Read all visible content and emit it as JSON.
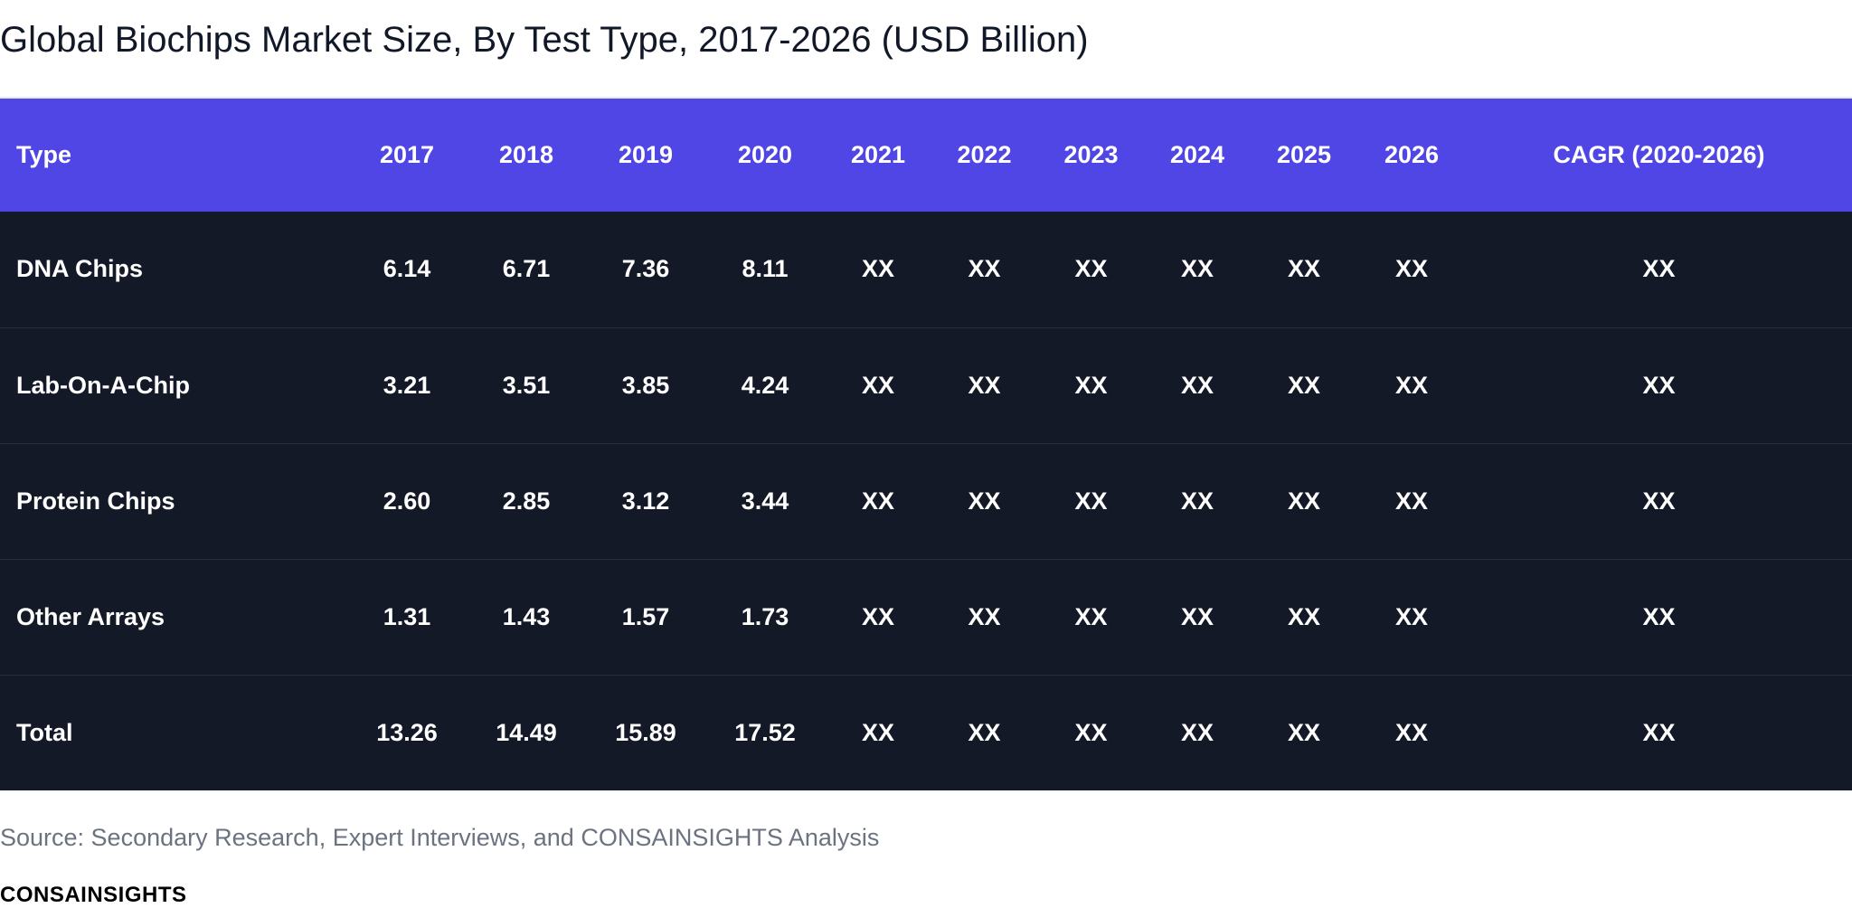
{
  "chart_data": {
    "type": "table",
    "title": "Global Biochips Market Size, By Test Type, 2017-2026 (USD Billion)",
    "columns": [
      "Type",
      "2017",
      "2018",
      "2019",
      "2020",
      "2021",
      "2022",
      "2023",
      "2024",
      "2025",
      "2026",
      "CAGR (2020-2026)"
    ],
    "rows": [
      [
        "DNA Chips",
        "6.14",
        "6.71",
        "7.36",
        "8.11",
        "XX",
        "XX",
        "XX",
        "XX",
        "XX",
        "XX",
        "XX"
      ],
      [
        "Lab-On-A-Chip",
        "3.21",
        "3.51",
        "3.85",
        "4.24",
        "XX",
        "XX",
        "XX",
        "XX",
        "XX",
        "XX",
        "XX"
      ],
      [
        "Protein Chips",
        "2.60",
        "2.85",
        "3.12",
        "3.44",
        "XX",
        "XX",
        "XX",
        "XX",
        "XX",
        "XX",
        "XX"
      ],
      [
        "Other Arrays",
        "1.31",
        "1.43",
        "1.57",
        "1.73",
        "XX",
        "XX",
        "XX",
        "XX",
        "XX",
        "XX",
        "XX"
      ],
      [
        "Total",
        "13.26",
        "14.49",
        "15.89",
        "17.52",
        "XX",
        "XX",
        "XX",
        "XX",
        "XX",
        "XX",
        "XX"
      ]
    ],
    "source": "Source: Secondary Research, Expert Interviews, and CONSAINSIGHTS Analysis",
    "brand": "CONSAINSIGHTS"
  },
  "colors": {
    "header_bg": "#5046e5",
    "body_bg": "#131927",
    "text": "#ffffff",
    "source_text": "#6b7280"
  }
}
